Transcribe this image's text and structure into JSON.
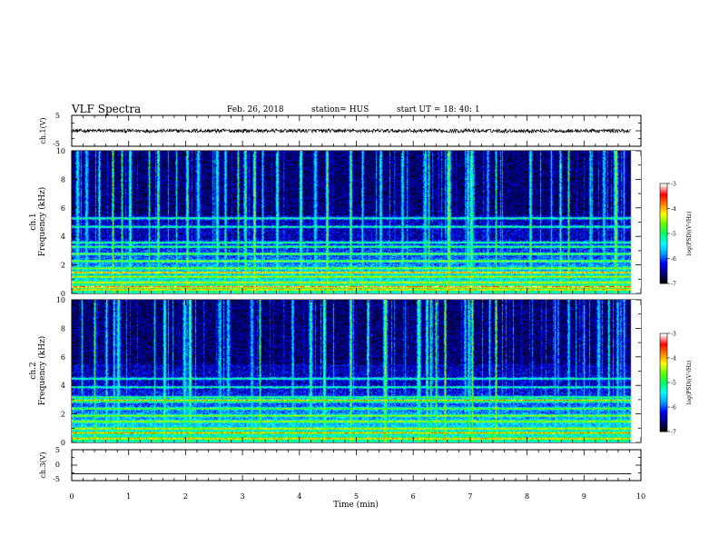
{
  "header": {
    "title": "VLF Spectra",
    "date": "Feb. 26, 2018",
    "station": "station= HUS",
    "start": "start  UT =   18: 40: 1"
  },
  "chart_data": [
    {
      "type": "line",
      "name": "waveform-ch1",
      "ylabel": "ch.1(V)",
      "xlim": [
        0,
        10
      ],
      "ylim": [
        -5,
        5
      ],
      "yticks": [
        "5",
        "-5"
      ],
      "level": 0,
      "noise_amplitude": 0.6,
      "data_xmax": 9.83
    },
    {
      "type": "heatmap",
      "name": "spectrogram-ch1",
      "ylabel": "ch.1\nFrequency  (kHz)",
      "xlim": [
        0,
        10
      ],
      "ylim": [
        0,
        10
      ],
      "yticks": [
        "0",
        "2",
        "4",
        "6",
        "8",
        "10"
      ],
      "data_xmax": 9.83,
      "background_log_psd": -7,
      "bands_khz": [
        0.3,
        0.5,
        0.8,
        1.2,
        1.5,
        1.8,
        2.3,
        2.8,
        3.3,
        3.6,
        4.7,
        5.3
      ],
      "strong_bands_khz": [
        0.5,
        1.5
      ],
      "vertical_events_min": [
        0.1,
        0.25,
        0.48,
        0.72,
        0.87,
        1.02,
        1.36,
        1.52,
        1.83,
        2.02,
        2.22,
        2.55,
        2.7,
        2.92,
        3.05,
        3.2,
        3.35,
        3.6,
        4.02,
        4.28,
        4.48,
        4.9,
        5.1,
        5.42,
        5.8,
        6.2,
        6.27,
        6.62,
        6.95,
        7.02,
        7.3,
        7.45,
        8.05,
        8.42,
        8.58,
        8.72,
        9.1,
        9.35,
        9.55,
        9.7
      ]
    },
    {
      "type": "heatmap",
      "name": "spectrogram-ch2",
      "ylabel": "ch.2\nFrequency  (kHz)",
      "xlim": [
        0,
        10
      ],
      "ylim": [
        0,
        10
      ],
      "yticks": [
        "0",
        "2",
        "4",
        "6",
        "8",
        "10"
      ],
      "data_xmax": 9.83,
      "background_log_psd": -7,
      "bands_khz": [
        0.3,
        0.7,
        1.0,
        1.5,
        1.9,
        2.4,
        2.9,
        3.2,
        3.9,
        4.5
      ],
      "strong_bands_khz": [
        3.0
      ],
      "vertical_events_min": [
        0.18,
        0.4,
        0.6,
        0.73,
        0.82,
        1.45,
        1.62,
        1.98,
        2.07,
        2.6,
        2.75,
        3.15,
        3.3,
        3.88,
        4.2,
        4.43,
        4.9,
        5.2,
        5.5,
        6.1,
        6.23,
        6.3,
        6.4,
        6.55,
        6.9,
        6.97,
        7.03,
        7.33,
        7.45,
        8.48,
        8.72,
        9.0,
        9.25,
        9.42,
        9.58,
        9.7
      ]
    },
    {
      "type": "line",
      "name": "waveform-ch3",
      "ylabel": "ch.3(V)",
      "xlim": [
        0,
        10
      ],
      "ylim": [
        -5,
        5
      ],
      "yticks": [
        "5",
        "0",
        "-5"
      ],
      "level": -2.8,
      "noise_amplitude": 0,
      "data_xmax": 9.83,
      "xticks": [
        "0",
        "1",
        "2",
        "3",
        "4",
        "5",
        "6",
        "7",
        "8",
        "9",
        "10"
      ],
      "xlabel": "Time  (min)"
    }
  ],
  "colorbar": {
    "label": "log(PSD)(V²/Hz)",
    "range": [
      -7,
      -3
    ],
    "ticks": [
      "-3",
      "-4",
      "-5",
      "-6",
      "-7"
    ],
    "colors": [
      "#000000",
      "#000080",
      "#0000ff",
      "#00a0ff",
      "#00ffff",
      "#00ff60",
      "#60ff00",
      "#ffff00",
      "#ff8000",
      "#ff0000",
      "#ffffff"
    ]
  }
}
